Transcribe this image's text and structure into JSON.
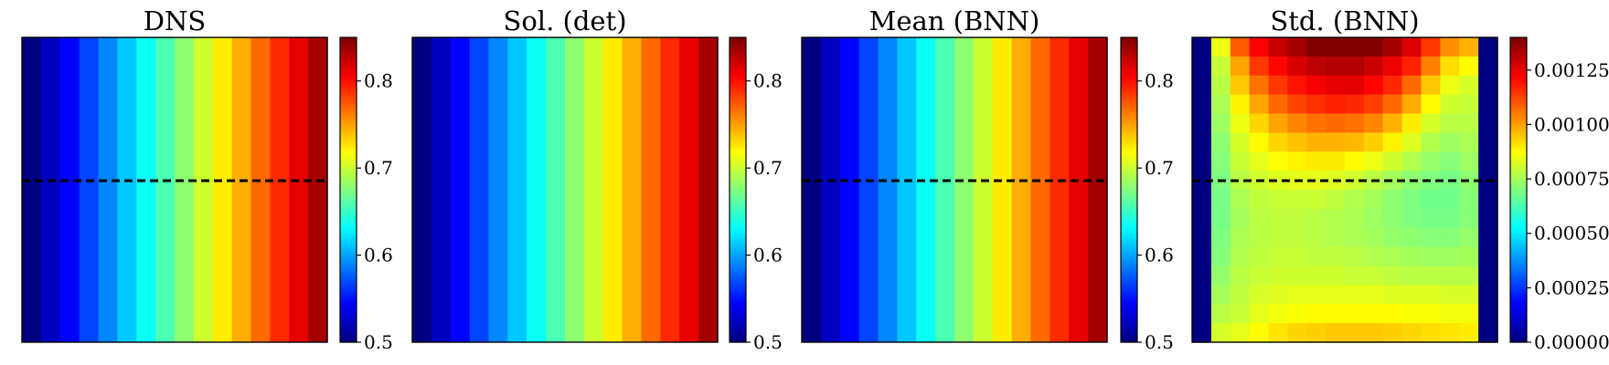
{
  "figure": {
    "panels": [
      {
        "title": "DNS"
      },
      {
        "title": "Sol. (det)"
      },
      {
        "title": "Mean (BNN)"
      },
      {
        "title": "Std. (BNN)"
      }
    ]
  },
  "chart_data": [
    {
      "type": "heatmap",
      "title": "DNS",
      "ncols": 16,
      "column_values": [
        0.5,
        0.522,
        0.545,
        0.567,
        0.59,
        0.612,
        0.635,
        0.657,
        0.68,
        0.702,
        0.725,
        0.747,
        0.77,
        0.792,
        0.815,
        0.837
      ],
      "dashed_line": true,
      "dashed_line_row_fraction": 0.47,
      "colorbar": {
        "range": [
          0.5,
          0.85
        ],
        "ticks": [
          0.5,
          0.6,
          0.7,
          0.8
        ],
        "tick_labels": [
          "0.5",
          "0.6",
          "0.7",
          "0.8"
        ]
      },
      "colormap": "jet"
    },
    {
      "type": "heatmap",
      "title": "Sol. (det)",
      "ncols": 16,
      "column_values": [
        0.5,
        0.522,
        0.545,
        0.567,
        0.59,
        0.612,
        0.635,
        0.657,
        0.68,
        0.702,
        0.725,
        0.747,
        0.77,
        0.792,
        0.815,
        0.837
      ],
      "dashed_line": false,
      "colorbar": {
        "range": [
          0.5,
          0.85
        ],
        "ticks": [
          0.5,
          0.6,
          0.7,
          0.8
        ],
        "tick_labels": [
          "0.5",
          "0.6",
          "0.7",
          "0.8"
        ]
      },
      "colormap": "jet"
    },
    {
      "type": "heatmap",
      "title": "Mean (BNN)",
      "ncols": 16,
      "column_values": [
        0.5,
        0.522,
        0.545,
        0.567,
        0.59,
        0.612,
        0.635,
        0.657,
        0.68,
        0.702,
        0.725,
        0.747,
        0.77,
        0.792,
        0.815,
        0.837
      ],
      "dashed_line": true,
      "dashed_line_row_fraction": 0.47,
      "colorbar": {
        "range": [
          0.5,
          0.85
        ],
        "ticks": [
          0.5,
          0.6,
          0.7,
          0.8
        ],
        "tick_labels": [
          "0.5",
          "0.6",
          "0.7",
          "0.8"
        ]
      },
      "colormap": "jet"
    },
    {
      "type": "heatmap",
      "title": "Std. (BNN)",
      "ncols": 16,
      "nrows": 16,
      "grid_values": [
        [
          0,
          0.00085,
          0.0011,
          0.00123,
          0.0013,
          0.00135,
          0.0014,
          0.00142,
          0.00142,
          0.0014,
          0.00135,
          0.00127,
          0.00115,
          0.00103,
          0.00098,
          0
        ],
        [
          0,
          0.0008,
          0.001,
          0.00115,
          0.00122,
          0.00128,
          0.00132,
          0.00133,
          0.00133,
          0.0013,
          0.00125,
          0.00118,
          0.00105,
          0.00092,
          0.00088,
          0
        ],
        [
          0,
          0.00078,
          0.00095,
          0.00107,
          0.00115,
          0.0012,
          0.00124,
          0.00126,
          0.00126,
          0.00122,
          0.00117,
          0.00108,
          0.00095,
          0.00085,
          0.00082,
          0
        ],
        [
          0,
          0.00076,
          0.00089,
          0.001,
          0.00108,
          0.00113,
          0.00116,
          0.00118,
          0.00117,
          0.00114,
          0.00108,
          0.00099,
          0.00088,
          0.00081,
          0.0008,
          0
        ],
        [
          0,
          0.00074,
          0.00085,
          0.00093,
          0.001,
          0.00104,
          0.00107,
          0.00108,
          0.00107,
          0.00104,
          0.00098,
          0.0009,
          0.00082,
          0.00078,
          0.00078,
          0
        ],
        [
          0,
          0.00072,
          0.00082,
          0.00088,
          0.00093,
          0.00096,
          0.00098,
          0.00098,
          0.00097,
          0.00094,
          0.00089,
          0.00083,
          0.00077,
          0.00074,
          0.00076,
          0
        ],
        [
          0,
          0.00071,
          0.0008,
          0.00084,
          0.00087,
          0.00089,
          0.0009,
          0.0009,
          0.00088,
          0.00085,
          0.00081,
          0.00077,
          0.00073,
          0.00071,
          0.00074,
          0
        ],
        [
          0,
          0.0007,
          0.00078,
          0.00081,
          0.00083,
          0.00084,
          0.00084,
          0.00083,
          0.00081,
          0.00078,
          0.00075,
          0.00072,
          0.0007,
          0.00069,
          0.00072,
          0
        ],
        [
          0,
          0.00069,
          0.00076,
          0.00079,
          0.0008,
          0.0008,
          0.0008,
          0.00079,
          0.00077,
          0.00075,
          0.00072,
          0.0007,
          0.00068,
          0.00068,
          0.00071,
          0
        ],
        [
          0,
          0.00069,
          0.00075,
          0.00078,
          0.00079,
          0.00079,
          0.00078,
          0.00077,
          0.00076,
          0.00074,
          0.00072,
          0.0007,
          0.00069,
          0.00069,
          0.00071,
          0
        ],
        [
          0,
          0.0007,
          0.00076,
          0.00078,
          0.00079,
          0.00079,
          0.00078,
          0.00077,
          0.00076,
          0.00075,
          0.00073,
          0.00072,
          0.00071,
          0.00071,
          0.00073,
          0
        ],
        [
          0,
          0.00071,
          0.00077,
          0.00079,
          0.0008,
          0.0008,
          0.00079,
          0.00079,
          0.00078,
          0.00077,
          0.00076,
          0.00075,
          0.00074,
          0.00074,
          0.00075,
          0
        ],
        [
          0,
          0.00073,
          0.00078,
          0.0008,
          0.00081,
          0.00081,
          0.00081,
          0.00081,
          0.0008,
          0.0008,
          0.00079,
          0.00078,
          0.00078,
          0.00078,
          0.00078,
          0
        ],
        [
          0,
          0.00075,
          0.00079,
          0.00082,
          0.00083,
          0.00084,
          0.00084,
          0.00084,
          0.00084,
          0.00084,
          0.00083,
          0.00083,
          0.00083,
          0.00082,
          0.00082,
          0
        ],
        [
          0,
          0.00078,
          0.0008,
          0.00084,
          0.00086,
          0.00087,
          0.00088,
          0.00088,
          0.00088,
          0.00088,
          0.00088,
          0.00087,
          0.00087,
          0.00086,
          0.00086,
          0
        ],
        [
          0,
          0.00082,
          0.00084,
          0.00088,
          0.00091,
          0.00093,
          0.00094,
          0.00095,
          0.00095,
          0.00095,
          0.00094,
          0.00093,
          0.00092,
          0.00091,
          0.0009,
          0
        ]
      ],
      "dashed_line": true,
      "dashed_line_row_fraction": 0.47,
      "colorbar": {
        "range": [
          0,
          0.0014
        ],
        "ticks": [
          0,
          0.00025,
          0.0005,
          0.00075,
          0.001,
          0.00125
        ],
        "tick_labels": [
          "0.00000",
          "0.00025",
          "0.00050",
          "0.00075",
          "0.00100",
          "0.00125"
        ]
      },
      "colormap": "jet"
    }
  ]
}
